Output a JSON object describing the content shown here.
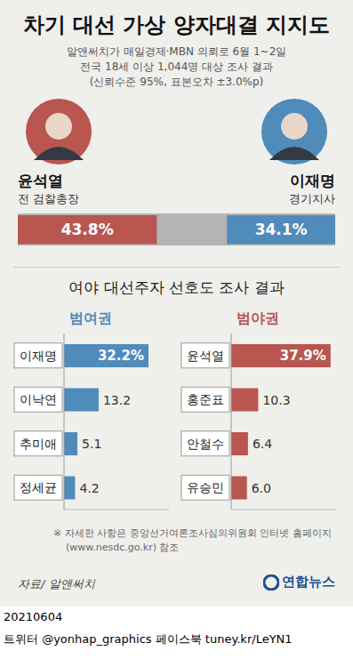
{
  "title": "차기 대선 가상 양자대결 지지도",
  "subtitle": [
    "알앤써치가 매일경제·MBN 의뢰로 6월 1~2일",
    "전국 18세 이상 1,044명 대상 조사 결과",
    "(신뢰수준 95%, 표본오차 ±3.0%p)"
  ],
  "section_title": "여야 대선주자 선호도 조사 결과",
  "note": [
    "※ 자세한 사항은 중앙선거여론조사심의위원회 인터넷 홈페이지",
    "(www.nesdc.go.kr) 참조"
  ],
  "source": "자료/ 알앤써치",
  "credit": "연합뉴스",
  "date": "20210604",
  "footer": "트위터 @yonhap_graphics  페이스북 tuney.kr/LeYN1",
  "chart_data": [
    {
      "type": "bar",
      "orientation": "horizontal",
      "series": [
        {
          "name": "윤석열",
          "role": "전 검찰총장",
          "color": "#b8564f",
          "values": [
            43.8
          ],
          "value_labels": [
            "43.8%"
          ]
        },
        {
          "name": "이재명",
          "role": "경기지사",
          "color": "#4f8bbb",
          "values": [
            34.1
          ],
          "value_labels": [
            "34.1%"
          ]
        }
      ],
      "xlim": [
        0,
        100
      ],
      "data_labels": true,
      "tick_labels": false
    },
    {
      "type": "bar",
      "orientation": "horizontal",
      "title": "범여권",
      "categories": [
        "이재명",
        "이낙연",
        "추미애",
        "정세균"
      ],
      "values": [
        32.2,
        13.2,
        5.1,
        4.2
      ],
      "value_labels": [
        "32.2%",
        "13.2",
        "5.1",
        "4.2"
      ],
      "color": "#4f8bbb",
      "xlim": [
        0,
        40
      ],
      "data_labels": true,
      "tick_labels": "y"
    },
    {
      "type": "bar",
      "orientation": "horizontal",
      "title": "범야권",
      "categories": [
        "윤석열",
        "홍준표",
        "안철수",
        "유승민"
      ],
      "values": [
        37.9,
        10.3,
        6.4,
        6.0
      ],
      "value_labels": [
        "37.9%",
        "10.3",
        "6.4",
        "6.0"
      ],
      "color": "#b8564f",
      "xlim": [
        0,
        40
      ],
      "data_labels": true,
      "tick_labels": "y"
    }
  ]
}
